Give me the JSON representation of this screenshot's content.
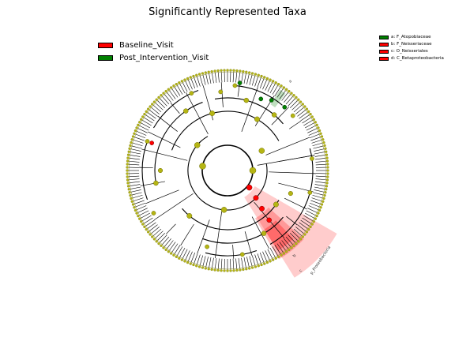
{
  "title": "Significantly Represented Taxa",
  "legend": [
    {
      "label": "Baseline_Visit",
      "color": "#ff0000"
    },
    {
      "label": "Post_Intervention_Visit",
      "color": "#008000"
    }
  ],
  "clade_legend": [
    {
      "label": "a: F_Atopobiaceae",
      "color": "#008000"
    },
    {
      "label": "b: F_Neisseriaceae",
      "color": "#ff0000"
    },
    {
      "label": "c: O_Neisseriales",
      "color": "#ff0000"
    },
    {
      "label": "d: C_Betaproteobacteria",
      "color": "#ff0000"
    }
  ],
  "highlight_labels": {
    "a": "a",
    "b": "b",
    "c": "c",
    "phylum": "p_Proteobacteria"
  },
  "colors": {
    "node": "#b5b514",
    "node_stroke": "#6d6d00",
    "baseline": "#ff0000",
    "post": "#008000",
    "edge": "#000000"
  }
}
